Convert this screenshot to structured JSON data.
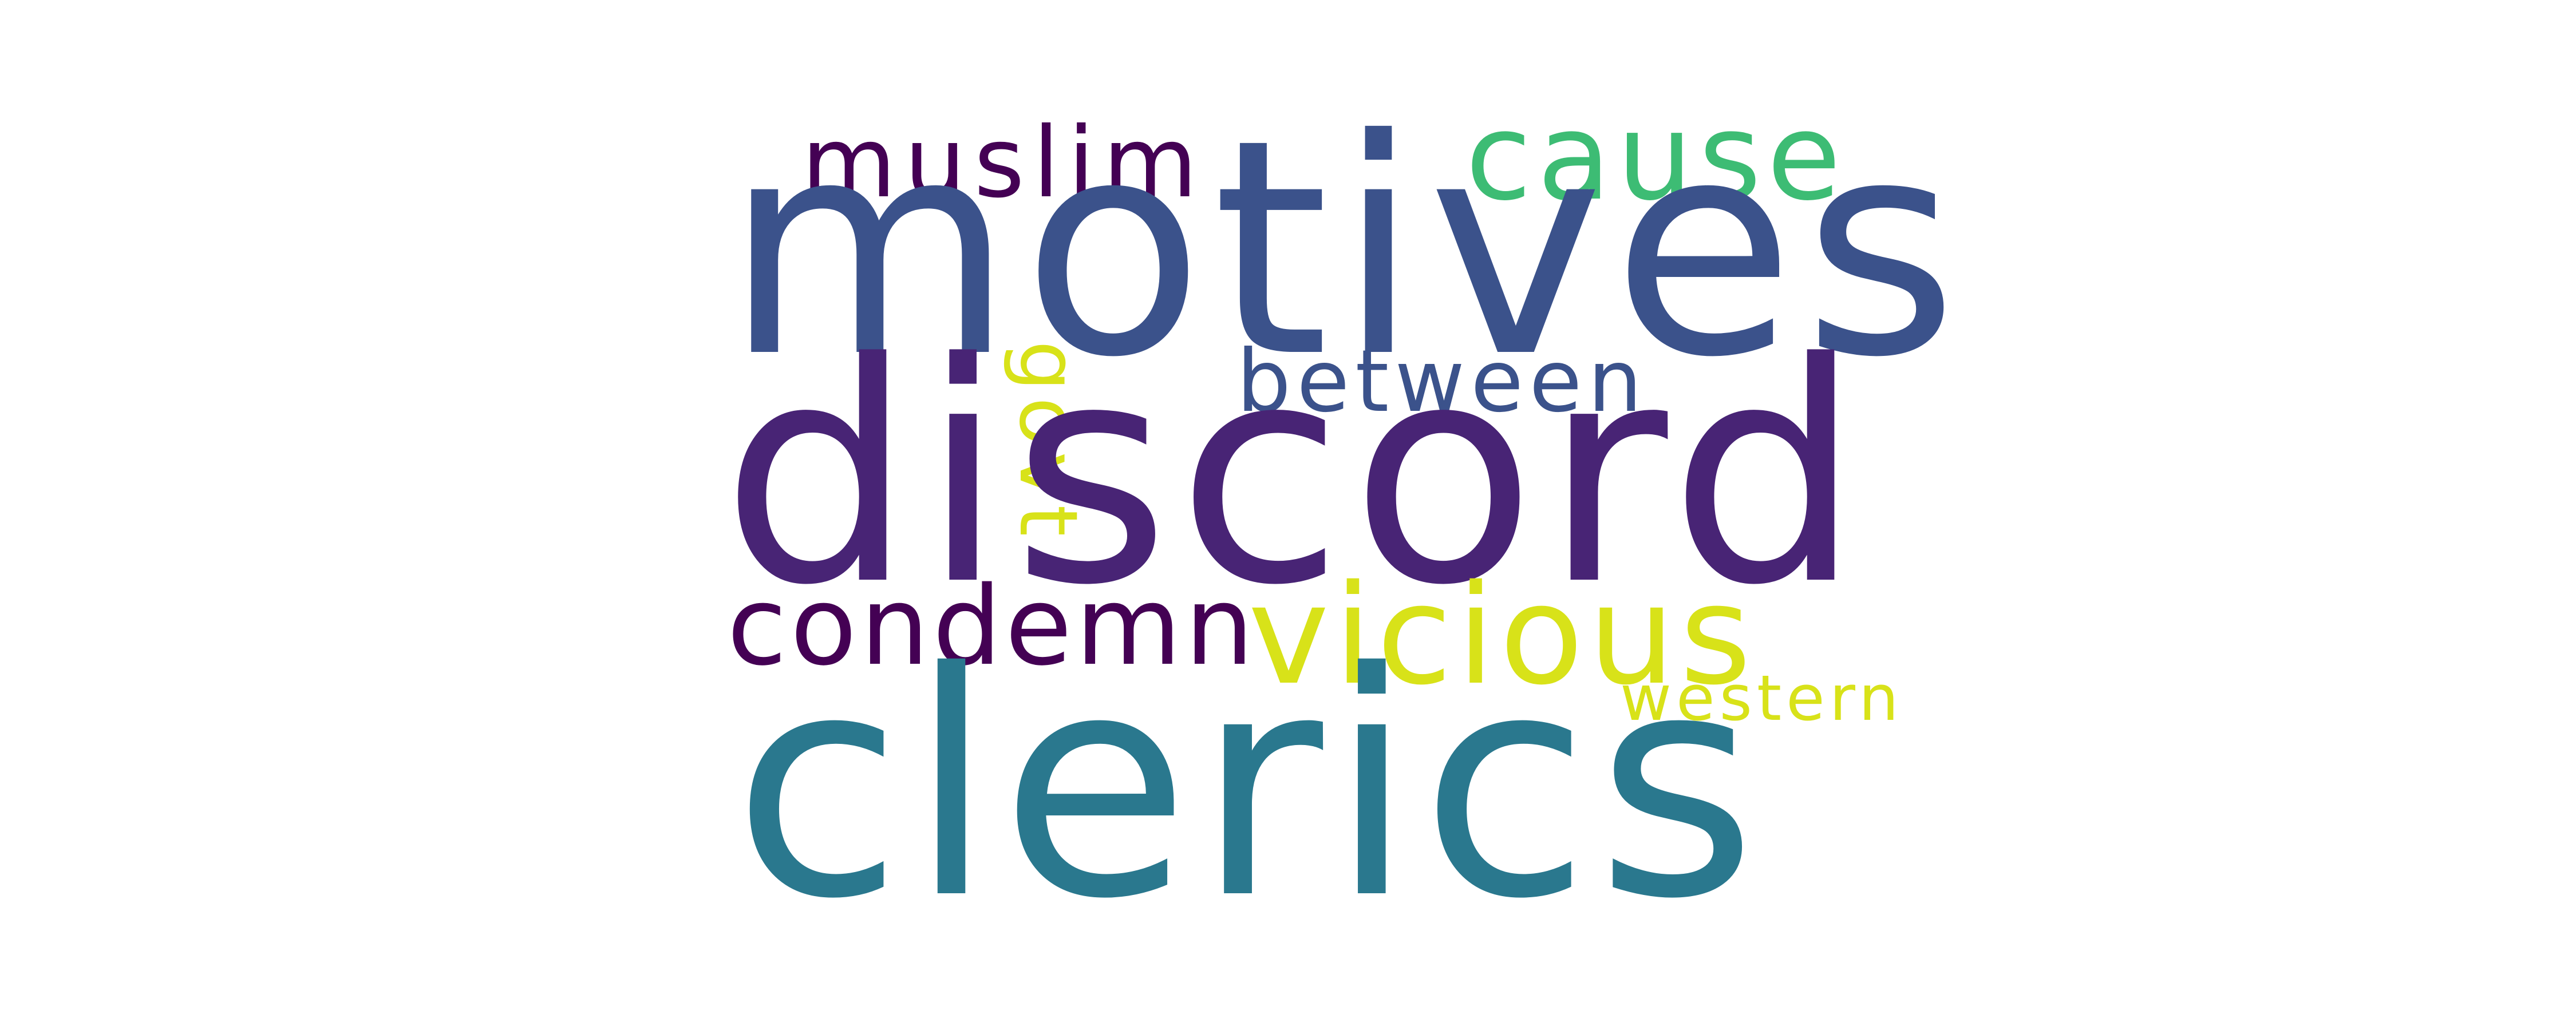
{
  "words": [
    {
      "text": "muslim",
      "color": "#440154"
    },
    {
      "text": "cause",
      "color": "#3dbc74"
    },
    {
      "text": "motives",
      "color": "#3b528b"
    },
    {
      "text": "between",
      "color": "#3b528b"
    },
    {
      "text": "govt",
      "color": "#d8e219"
    },
    {
      "text": "discord",
      "color": "#482475"
    },
    {
      "text": "condemn",
      "color": "#440154"
    },
    {
      "text": "vicious",
      "color": "#d8e219"
    },
    {
      "text": "western",
      "color": "#d8e219"
    },
    {
      "text": "clerics",
      "color": "#2a788e"
    }
  ]
}
